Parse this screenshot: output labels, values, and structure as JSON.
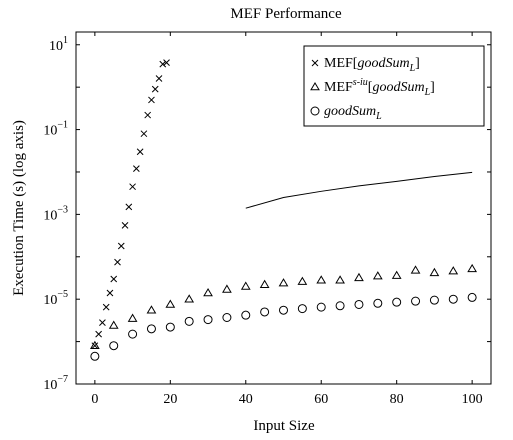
{
  "chart_data": {
    "type": "scatter",
    "title": "MEF Performance",
    "xlabel": "Input Size",
    "ylabel": "Execution Time (s) (log axis)",
    "x_ticks": [
      0,
      20,
      40,
      60,
      80,
      100
    ],
    "y_tick_base": "10",
    "y_tick_exponents": [
      "−7",
      "−5",
      "−3",
      "−1",
      "1"
    ],
    "y_scale": "log",
    "xlim": [
      -5,
      105
    ],
    "ylim": [
      1e-07,
      20
    ],
    "grid": false,
    "legend_position": "top-right",
    "series": [
      {
        "name_parts": [
          "MEF[",
          "goodSum",
          "L",
          "]"
        ],
        "marker": "cross",
        "x": [
          0,
          1,
          2,
          3,
          4,
          5,
          6,
          7,
          8,
          9,
          10,
          11,
          12,
          13,
          14,
          15,
          16,
          17,
          18,
          19
        ],
        "y": [
          8e-07,
          1.5e-06,
          2.8e-06,
          6.5e-06,
          1.4e-05,
          3e-05,
          7.5e-05,
          0.00018,
          0.00055,
          0.0015,
          0.0045,
          0.012,
          0.03,
          0.08,
          0.22,
          0.5,
          0.9,
          1.6,
          3.5,
          3.8
        ]
      },
      {
        "name_parts": [
          "MEF",
          "s-iu",
          "[",
          "goodSum",
          "L",
          "]"
        ],
        "marker": "triangle",
        "x": [
          0,
          5,
          10,
          15,
          20,
          25,
          30,
          35,
          40,
          45,
          50,
          55,
          60,
          65,
          70,
          75,
          80,
          85,
          90,
          95,
          100
        ],
        "y": [
          8e-07,
          2.4e-06,
          3.5e-06,
          5.5e-06,
          7.5e-06,
          1e-05,
          1.4e-05,
          1.7e-05,
          2e-05,
          2.2e-05,
          2.4e-05,
          2.6e-05,
          2.8e-05,
          2.8e-05,
          3.2e-05,
          3.5e-05,
          3.6e-05,
          4.8e-05,
          4.2e-05,
          4.6e-05,
          5.2e-05
        ]
      },
      {
        "name_parts": [
          "goodSum",
          "L"
        ],
        "marker": "circle",
        "x": [
          0,
          5,
          10,
          15,
          20,
          25,
          30,
          35,
          40,
          45,
          50,
          55,
          60,
          65,
          70,
          75,
          80,
          85,
          90,
          95,
          100
        ],
        "y": [
          4.5e-07,
          8e-07,
          1.5e-06,
          2e-06,
          2.2e-06,
          3e-06,
          3.3e-06,
          3.7e-06,
          4.2e-06,
          5e-06,
          5.5e-06,
          6e-06,
          6.5e-06,
          7e-06,
          7.5e-06,
          8e-06,
          8.5e-06,
          9e-06,
          9.5e-06,
          1e-05,
          1.1e-05
        ]
      },
      {
        "marker": "line",
        "x": [
          40,
          50,
          60,
          70,
          80,
          90,
          100
        ],
        "y": [
          0.0014,
          0.0025,
          0.0035,
          0.0047,
          0.006,
          0.0078,
          0.0098
        ]
      }
    ]
  }
}
